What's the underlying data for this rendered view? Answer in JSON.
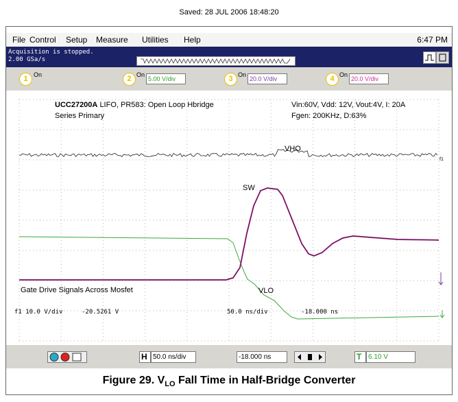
{
  "saved": "Saved: 28 JUL 2006 18:48:20",
  "menu": [
    "File",
    "Control",
    "Setup",
    "Measure",
    "Utilities",
    "Help"
  ],
  "clock": "6:47 PM",
  "status": [
    "Acquisition is stopped.",
    "2.00 GSa/s"
  ],
  "channels": [
    {
      "number": "1",
      "on": "On"
    },
    {
      "number": "2",
      "on": "On",
      "scale": "5.00 V/div"
    },
    {
      "number": "3",
      "on": "On",
      "scale": "20.0 V/div"
    },
    {
      "number": "4",
      "on": "On",
      "scale": "20.0 V/div"
    }
  ],
  "screen": {
    "title_bold": "UCC27200A",
    "title": "LIFO, PR583: Open Loop Hbridge",
    "subtitle": "Series Primary",
    "conditions": "Vin:60V, Vdd: 12V, Vout:4V, I: 20A",
    "fgen": "Fgen: 200KHz, D:63%",
    "labels": {
      "vho": "VHO",
      "sw": "SW",
      "vlo": "VLO"
    },
    "marker": "f1",
    "note": "Gate Drive Signals Across Mosfet",
    "readout": [
      "f1 10.0 V/div",
      "-20.5261 V",
      "50.0 ns/div",
      "-18.000 ns"
    ]
  },
  "toolbar": {
    "h": "H",
    "timebase": "50.0 ns/div",
    "delay": "-18.000 ns",
    "t": "T",
    "trigger": "6.10 V"
  },
  "caption": {
    "prefix": "Figure 29. V",
    "sub": "LO",
    "suffix": " Fall Time in Half-Bridge Converter"
  }
}
